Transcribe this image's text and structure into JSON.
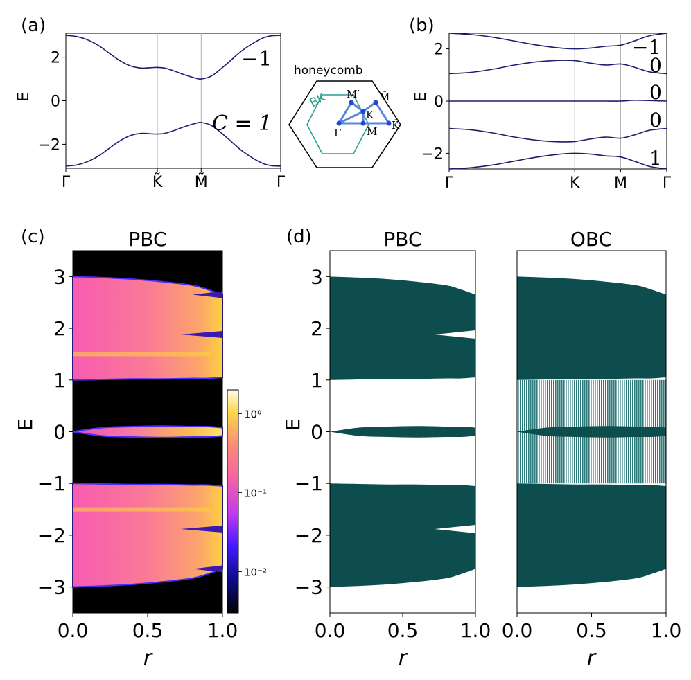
{
  "colors": {
    "band_line": "#1d1d6e",
    "bz_teal": "#2a9d8f",
    "path_blue": "#5b84e0",
    "point_blue": "#2348c8",
    "scatter_fill": "#0d4d4d",
    "obc_fill": "#3f8a8a",
    "gridline": "#b0b0b0"
  },
  "chart_data": [
    {
      "id": "a",
      "panel_label": "(a)",
      "type": "line",
      "ylabel": "E",
      "ylim": [
        -3.1,
        3.1
      ],
      "yticks": [
        -2,
        0,
        2
      ],
      "ytick_labels": [
        "−2",
        "0",
        "2"
      ],
      "xtick_labels": [
        "Γ",
        "K̃",
        "M̃",
        "Γ"
      ],
      "xticks": [
        0,
        0.426,
        0.63,
        1
      ],
      "vlines": [
        0.426,
        0.63
      ],
      "grid": "vertical lines at high-symmetry points",
      "series": [
        {
          "x": [
            0,
            0.05,
            0.1,
            0.15,
            0.2,
            0.25,
            0.3,
            0.35,
            0.4,
            0.426,
            0.46,
            0.5,
            0.55,
            0.6,
            0.63,
            0.68,
            0.75,
            0.82,
            0.9,
            0.95,
            1.0
          ],
          "values": [
            3.0,
            2.95,
            2.8,
            2.55,
            2.2,
            1.85,
            1.6,
            1.5,
            1.52,
            1.53,
            1.5,
            1.38,
            1.2,
            1.05,
            1.0,
            1.15,
            1.7,
            2.3,
            2.8,
            2.97,
            3.0
          ]
        },
        {
          "x": [
            0,
            0.05,
            0.1,
            0.15,
            0.2,
            0.25,
            0.3,
            0.35,
            0.4,
            0.426,
            0.46,
            0.5,
            0.55,
            0.6,
            0.63,
            0.68,
            0.75,
            0.82,
            0.9,
            0.95,
            1.0
          ],
          "values": [
            -3.0,
            -2.95,
            -2.8,
            -2.55,
            -2.2,
            -1.85,
            -1.6,
            -1.5,
            -1.52,
            -1.53,
            -1.5,
            -1.38,
            -1.2,
            -1.05,
            -1.0,
            -1.15,
            -1.7,
            -2.3,
            -2.8,
            -2.97,
            -3.0
          ]
        }
      ],
      "annotations": [
        "−1",
        "C = 1"
      ]
    },
    {
      "id": "bz",
      "type": "diagram",
      "title": "honeycomb",
      "labels": [
        "BK",
        "M′",
        "M̃",
        "K",
        "K̃",
        "Γ",
        "M"
      ]
    },
    {
      "id": "b",
      "panel_label": "(b)",
      "type": "line",
      "ylabel": "E",
      "ylim": [
        -2.6,
        2.6
      ],
      "yticks": [
        -2,
        0,
        2
      ],
      "ytick_labels": [
        "−2",
        "0",
        "2"
      ],
      "xtick_labels": [
        "Γ",
        "K",
        "M",
        "Γ"
      ],
      "xticks": [
        0,
        0.577,
        0.788,
        1
      ],
      "vlines": [
        0.577,
        0.788
      ],
      "series": [
        {
          "x": [
            0,
            0.1,
            0.2,
            0.3,
            0.4,
            0.5,
            0.577,
            0.65,
            0.72,
            0.788,
            0.85,
            0.92,
            1.0
          ],
          "values": [
            2.6,
            2.55,
            2.45,
            2.3,
            2.15,
            2.04,
            2.0,
            2.03,
            2.1,
            2.14,
            2.3,
            2.5,
            2.6
          ]
        },
        {
          "x": [
            0,
            0.1,
            0.2,
            0.3,
            0.4,
            0.5,
            0.577,
            0.65,
            0.72,
            0.788,
            0.85,
            0.92,
            1.0
          ],
          "values": [
            1.05,
            1.1,
            1.22,
            1.38,
            1.5,
            1.56,
            1.55,
            1.45,
            1.38,
            1.42,
            1.3,
            1.12,
            1.05
          ]
        },
        {
          "x": [
            0,
            0.1,
            0.2,
            0.3,
            0.4,
            0.5,
            0.577,
            0.65,
            0.72,
            0.788,
            0.85,
            0.92,
            1.0
          ],
          "values": [
            0,
            0,
            0,
            0,
            0,
            0,
            0,
            0,
            0,
            0,
            0.03,
            0.02,
            0
          ]
        },
        {
          "x": [
            0,
            0.1,
            0.2,
            0.3,
            0.4,
            0.5,
            0.577,
            0.65,
            0.72,
            0.788,
            0.85,
            0.92,
            1.0
          ],
          "values": [
            -1.05,
            -1.1,
            -1.22,
            -1.38,
            -1.5,
            -1.56,
            -1.55,
            -1.45,
            -1.38,
            -1.42,
            -1.3,
            -1.12,
            -1.05
          ]
        },
        {
          "x": [
            0,
            0.1,
            0.2,
            0.3,
            0.4,
            0.5,
            0.577,
            0.65,
            0.72,
            0.788,
            0.85,
            0.92,
            1.0
          ],
          "values": [
            -2.6,
            -2.55,
            -2.45,
            -2.3,
            -2.15,
            -2.04,
            -2.0,
            -2.03,
            -2.1,
            -2.14,
            -2.3,
            -2.5,
            -2.6
          ]
        }
      ],
      "annotations": [
        "−1",
        "0",
        "0",
        "0",
        "1"
      ]
    },
    {
      "id": "c",
      "panel_label": "(c)",
      "type": "heatmap",
      "title": "PBC",
      "xlabel": "r",
      "ylabel": "E",
      "xlim": [
        0,
        1
      ],
      "ylim": [
        -3.5,
        3.5
      ],
      "xticks": [
        0,
        0.5,
        1
      ],
      "xtick_labels": [
        "0.0",
        "0.5",
        "1.0"
      ],
      "yticks": [
        -3,
        -2,
        -1,
        0,
        1,
        2,
        3
      ],
      "ytick_labels": [
        "−3",
        "−2",
        "−1",
        "0",
        "1",
        "2",
        "3"
      ],
      "colorbar": {
        "scale": "log",
        "range": [
          0.003,
          2
        ],
        "ticks": [
          0.01,
          0.1,
          1
        ],
        "tick_labels": [
          "10⁻²",
          "10⁻¹",
          "10⁰"
        ]
      },
      "bands": [
        {
          "r": [
            0,
            0.2,
            0.4,
            0.6,
            0.8,
            0.9,
            1.0
          ],
          "top": [
            3.0,
            2.98,
            2.95,
            2.9,
            2.83,
            2.75,
            2.65
          ],
          "bottom": [
            1.0,
            1.01,
            1.02,
            1.02,
            1.03,
            1.03,
            1.05
          ]
        },
        {
          "r": [
            0,
            0.2,
            0.4,
            0.6,
            0.8,
            0.9,
            1.0
          ],
          "top": [
            0.0,
            0.08,
            0.1,
            0.11,
            0.1,
            0.1,
            0.08
          ],
          "bottom": [
            0.0,
            -0.08,
            -0.1,
            -0.11,
            -0.1,
            -0.1,
            -0.08
          ]
        },
        {
          "r": [
            0,
            0.2,
            0.4,
            0.6,
            0.8,
            0.9,
            1.0
          ],
          "top": [
            -1.0,
            -1.01,
            -1.02,
            -1.02,
            -1.03,
            -1.03,
            -1.05
          ],
          "bottom": [
            -3.0,
            -2.98,
            -2.95,
            -2.9,
            -2.83,
            -2.75,
            -2.65
          ]
        }
      ]
    },
    {
      "id": "d",
      "panel_label": "(d)",
      "type": "scatter",
      "subplots": [
        {
          "title": "PBC",
          "xlabel": "r",
          "ylabel": "E",
          "xlim": [
            0,
            1
          ],
          "ylim": [
            -3.5,
            3.5
          ],
          "xticks": [
            0,
            0.5,
            1
          ],
          "xtick_labels": [
            "0.0",
            "0.5",
            "1.0"
          ],
          "yticks": [
            -3,
            -2,
            -1,
            0,
            1,
            2,
            3
          ],
          "ytick_labels": [
            "−3",
            "−2",
            "−1",
            "0",
            "1",
            "2",
            "3"
          ]
        },
        {
          "title": "OBC",
          "xlabel": "r",
          "xlim": [
            0,
            1
          ],
          "ylim": [
            -3.5,
            3.5
          ],
          "xticks": [
            0,
            0.5,
            1
          ],
          "xtick_labels": [
            "0.0",
            "0.5",
            "1.0"
          ]
        }
      ]
    }
  ]
}
